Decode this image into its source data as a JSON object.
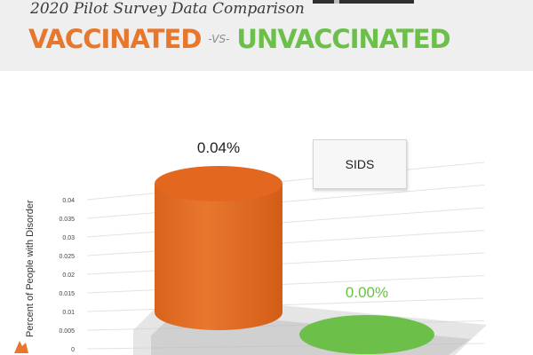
{
  "header": {
    "subtitle": "2020 Pilot Survey Data Comparison",
    "title_left": "VACCINATED",
    "title_vs": "-VS-",
    "title_right": "UNVACCINATED"
  },
  "colors": {
    "vaccinated": "#e8772e",
    "unvaccinated": "#6cc04a",
    "header_bg": "#efefef"
  },
  "chart_data": {
    "type": "bar",
    "title": "SIDS",
    "ylabel": "Percent of People with Disorder",
    "ylim": [
      0,
      0.04
    ],
    "yticks": [
      "0.04",
      "0.035",
      "0.03",
      "0.025",
      "0.02",
      "0.015",
      "0.01",
      "0.005",
      "0"
    ],
    "categories": [
      "Vaccinated",
      "Unvaccinated"
    ],
    "values": [
      0.04,
      0.0
    ],
    "data_labels": [
      "0.04%",
      "0.00%"
    ],
    "bar_colors": [
      "#e8772e",
      "#6cc04a"
    ],
    "grid": true,
    "style": "3d-cylinder"
  }
}
